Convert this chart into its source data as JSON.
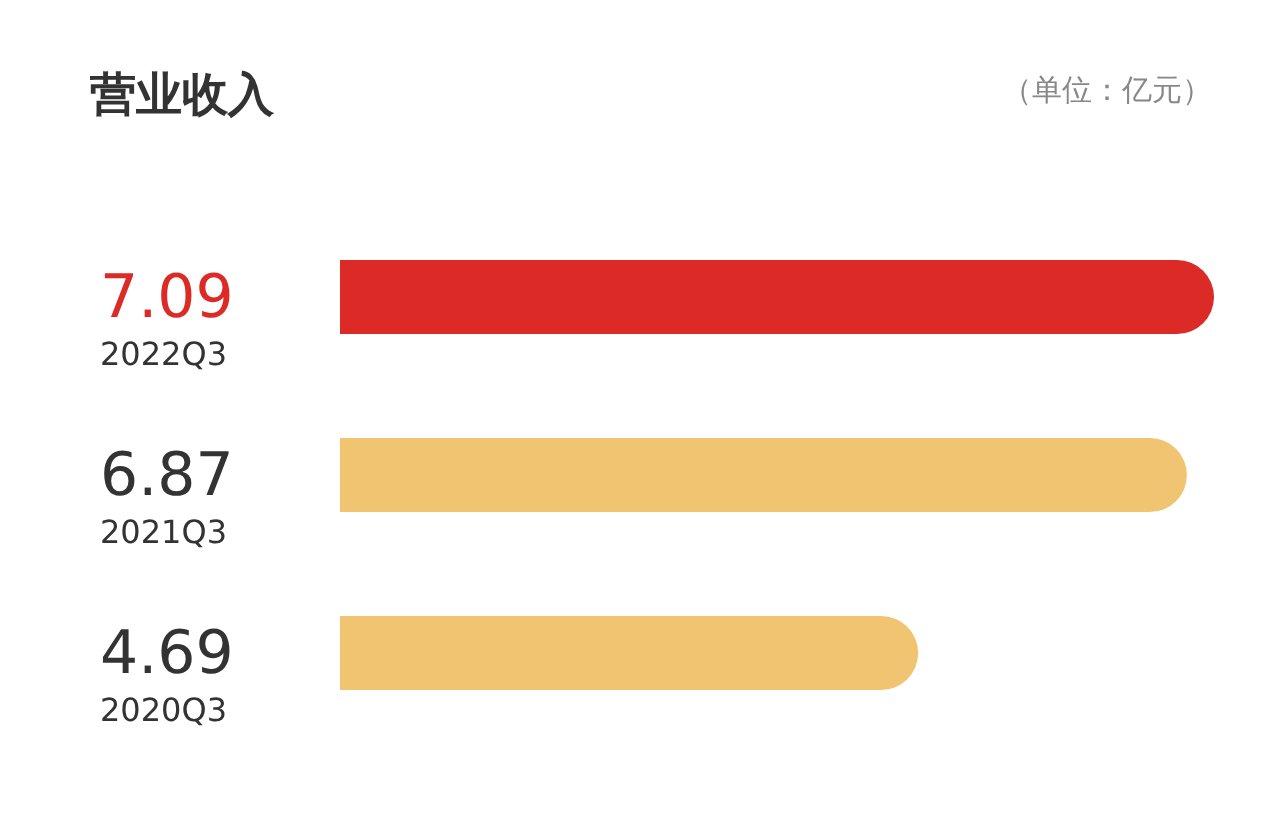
{
  "chart_data": {
    "type": "bar",
    "orientation": "horizontal",
    "title": "营业收入",
    "annotations": [
      "（单位：亿元）"
    ],
    "categories": [
      "2022Q3",
      "2021Q3",
      "2020Q3"
    ],
    "values": [
      7.09,
      6.87,
      4.69
    ],
    "colors": [
      "#dc2b26",
      "#f0c470",
      "#f0c470"
    ],
    "data_labels": true
  }
}
